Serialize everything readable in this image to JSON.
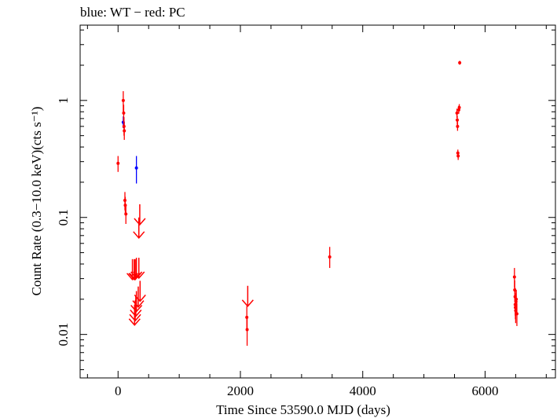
{
  "title": "blue: WT − red: PC",
  "chart_data": {
    "type": "scatter",
    "title": "blue: WT − red: PC",
    "xlabel": "Time Since 53590.0 MJD (days)",
    "ylabel": "Count Rate (0.3−10.0 keV)(cts s⁻¹)",
    "xlim": [
      -620,
      7150
    ],
    "ylim": [
      0.00425,
      4.4
    ],
    "yscale": "log",
    "grid": false,
    "xticks": [
      0,
      2000,
      4000,
      6000
    ],
    "xtick_labels": [
      "0",
      "2000",
      "4000",
      "6000"
    ],
    "yticks": [
      0.01,
      0.1,
      1
    ],
    "ytick_labels": [
      "0.01",
      "0.1",
      "1"
    ],
    "colors": {
      "WT": "#0000ff",
      "PC": "#ff0000"
    },
    "series": [
      {
        "name": "WT",
        "color": "#0000ff",
        "points": [
          {
            "x": 85,
            "y": 0.65,
            "ylo": 0.58,
            "yhi": 0.73
          },
          {
            "x": 300,
            "y": 0.265,
            "ylo": 0.195,
            "yhi": 0.335
          }
        ]
      },
      {
        "name": "PC",
        "color": "#ff0000",
        "points": [
          {
            "x": 0,
            "y": 0.29,
            "ylo": 0.245,
            "yhi": 0.335
          },
          {
            "x": 85,
            "y": 1.0,
            "ylo": 0.8,
            "yhi": 1.2
          },
          {
            "x": 92,
            "y": 0.78,
            "ylo": 0.65,
            "yhi": 0.92
          },
          {
            "x": 97,
            "y": 0.6,
            "ylo": 0.5,
            "yhi": 0.72
          },
          {
            "x": 102,
            "y": 0.55,
            "ylo": 0.46,
            "yhi": 0.65
          },
          {
            "x": 112,
            "y": 0.14,
            "ylo": 0.115,
            "yhi": 0.165
          },
          {
            "x": 118,
            "y": 0.127,
            "ylo": 0.105,
            "yhi": 0.15
          },
          {
            "x": 128,
            "y": 0.107,
            "ylo": 0.088,
            "yhi": 0.128
          },
          {
            "x": 2105,
            "y": 0.014,
            "ylo": 0.0108,
            "yhi": 0.0175
          },
          {
            "x": 2110,
            "y": 0.011,
            "ylo": 0.008,
            "yhi": 0.0142
          },
          {
            "x": 3460,
            "y": 0.046,
            "ylo": 0.037,
            "yhi": 0.056
          },
          {
            "x": 5540,
            "y": 0.78,
            "ylo": 0.71,
            "yhi": 0.85
          },
          {
            "x": 5545,
            "y": 0.68,
            "ylo": 0.62,
            "yhi": 0.74
          },
          {
            "x": 5550,
            "y": 0.6,
            "ylo": 0.55,
            "yhi": 0.66
          },
          {
            "x": 5555,
            "y": 0.355,
            "ylo": 0.33,
            "yhi": 0.38
          },
          {
            "x": 5560,
            "y": 0.335,
            "ylo": 0.31,
            "yhi": 0.36
          },
          {
            "x": 5570,
            "y": 0.83,
            "ylo": 0.77,
            "yhi": 0.9
          },
          {
            "x": 5578,
            "y": 0.87,
            "ylo": 0.81,
            "yhi": 0.93
          },
          {
            "x": 5585,
            "y": 2.1,
            "ylo": 2.02,
            "yhi": 2.18
          },
          {
            "x": 6480,
            "y": 0.031,
            "ylo": 0.025,
            "yhi": 0.037
          },
          {
            "x": 6485,
            "y": 0.024,
            "ylo": 0.019,
            "yhi": 0.029
          },
          {
            "x": 6490,
            "y": 0.021,
            "ylo": 0.017,
            "yhi": 0.025
          },
          {
            "x": 6492,
            "y": 0.018,
            "ylo": 0.0145,
            "yhi": 0.022
          },
          {
            "x": 6495,
            "y": 0.017,
            "ylo": 0.0135,
            "yhi": 0.021
          },
          {
            "x": 6500,
            "y": 0.016,
            "ylo": 0.0125,
            "yhi": 0.02
          },
          {
            "x": 6505,
            "y": 0.019,
            "ylo": 0.0155,
            "yhi": 0.0225
          },
          {
            "x": 6510,
            "y": 0.02,
            "ylo": 0.016,
            "yhi": 0.024
          },
          {
            "x": 6520,
            "y": 0.015,
            "ylo": 0.0118,
            "yhi": 0.0185
          }
        ],
        "upper_limits": [
          {
            "x": 235,
            "y": 0.036
          },
          {
            "x": 265,
            "y": 0.036
          },
          {
            "x": 280,
            "y": 0.036
          },
          {
            "x": 300,
            "y": 0.037
          },
          {
            "x": 340,
            "y": 0.037
          },
          {
            "x": 355,
            "y": 0.106
          },
          {
            "x": 340,
            "y": 0.0817
          },
          {
            "x": 360,
            "y": 0.0235
          },
          {
            "x": 330,
            "y": 0.021
          },
          {
            "x": 300,
            "y": 0.0192
          },
          {
            "x": 290,
            "y": 0.0175
          },
          {
            "x": 280,
            "y": 0.016
          },
          {
            "x": 270,
            "y": 0.0147
          },
          {
            "x": 2120,
            "y": 0.0213
          }
        ]
      }
    ]
  }
}
